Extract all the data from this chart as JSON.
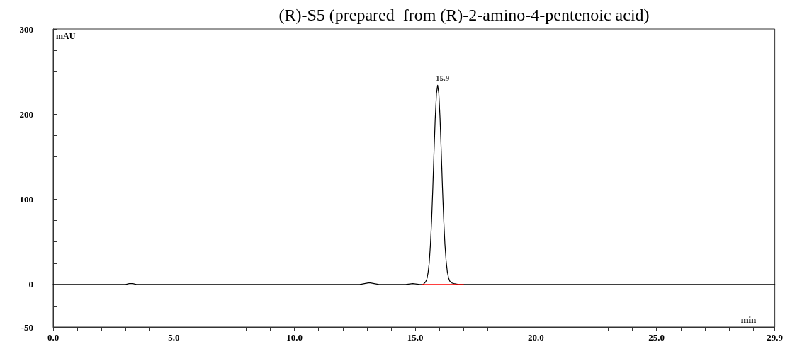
{
  "chart_data": {
    "type": "line",
    "title": "(R)-S5 (prepared  from (R)-2-amino-4-pentenoic acid)",
    "xlabel": "min",
    "ylabel": "mAU",
    "xlim": [
      0,
      29.9
    ],
    "ylim": [
      -50,
      300
    ],
    "xticks": [
      {
        "value": 0,
        "label": "0.0"
      },
      {
        "value": 1,
        "label": null
      },
      {
        "value": 2,
        "label": null
      },
      {
        "value": 3,
        "label": null
      },
      {
        "value": 4,
        "label": null
      },
      {
        "value": 5,
        "label": "5.0"
      },
      {
        "value": 6,
        "label": null
      },
      {
        "value": 7,
        "label": null
      },
      {
        "value": 8,
        "label": null
      },
      {
        "value": 9,
        "label": null
      },
      {
        "value": 10,
        "label": "10.0"
      },
      {
        "value": 11,
        "label": null
      },
      {
        "value": 12,
        "label": null
      },
      {
        "value": 13,
        "label": null
      },
      {
        "value": 14,
        "label": null
      },
      {
        "value": 15,
        "label": "15.0"
      },
      {
        "value": 16,
        "label": null
      },
      {
        "value": 17,
        "label": null
      },
      {
        "value": 18,
        "label": null
      },
      {
        "value": 19,
        "label": null
      },
      {
        "value": 20,
        "label": "20.0"
      },
      {
        "value": 21,
        "label": null
      },
      {
        "value": 22,
        "label": null
      },
      {
        "value": 23,
        "label": null
      },
      {
        "value": 24,
        "label": null
      },
      {
        "value": 25,
        "label": "25.0"
      },
      {
        "value": 26,
        "label": null
      },
      {
        "value": 27,
        "label": null
      },
      {
        "value": 28,
        "label": null
      },
      {
        "value": 29,
        "label": null
      },
      29.9
    ],
    "yticks": [
      -50,
      {
        "value": -25,
        "label": null
      },
      0,
      {
        "value": 25,
        "label": null
      },
      {
        "value": 50,
        "label": null
      },
      {
        "value": 75,
        "label": null
      },
      100,
      {
        "value": 125,
        "label": null
      },
      {
        "value": 150,
        "label": null
      },
      {
        "value": 175,
        "label": null
      },
      200,
      {
        "value": 225,
        "label": null
      },
      {
        "value": 250,
        "label": null
      },
      {
        "value": 275,
        "label": null
      },
      300
    ],
    "marker": "none",
    "line_style": "solid",
    "annotations": [
      {
        "text": "15.9",
        "x": 15.9,
        "y": 234
      }
    ],
    "series": [
      {
        "color": "#000000",
        "x": [
          0,
          3.0,
          3.15,
          3.3,
          3.45,
          12.7,
          12.9,
          13.1,
          13.3,
          13.5,
          14.6,
          14.9,
          15.2,
          15.33,
          15.43,
          15.48,
          15.53,
          15.58,
          15.63,
          15.68,
          15.73,
          15.78,
          15.83,
          15.88,
          15.93,
          15.98,
          16.03,
          16.08,
          16.13,
          16.18,
          16.23,
          16.28,
          16.33,
          16.38,
          16.43,
          16.5,
          16.6,
          16.8,
          18,
          29.9
        ],
        "values": [
          0,
          0,
          1,
          1,
          0,
          0,
          1,
          2,
          1,
          0,
          0,
          1,
          0,
          0,
          3,
          6,
          13,
          25,
          46,
          75,
          113,
          156,
          195,
          224,
          234,
          224,
          195,
          156,
          114,
          77,
          48,
          28,
          15,
          8,
          4,
          2,
          1,
          0,
          0,
          0
        ]
      },
      {
        "color": "#ff0000",
        "x": [
          15.3,
          17.0
        ],
        "values": [
          0,
          0
        ]
      }
    ]
  }
}
